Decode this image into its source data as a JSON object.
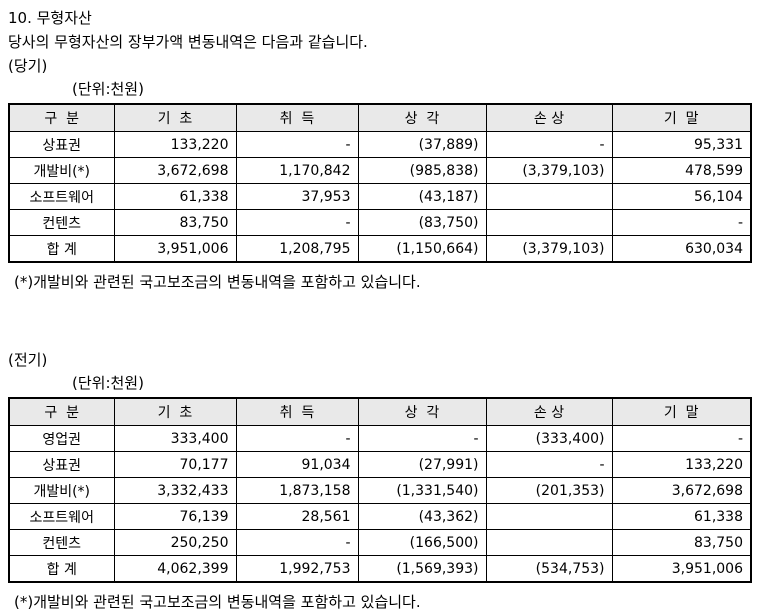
{
  "page": {
    "title": "10. 무형자산",
    "intro": "당사의 무형자산의 장부가액 변동내역은 다음과 같습니다.",
    "unit_label": "(단위:천원)",
    "footnote": "(*)개발비와 관련된 국고보조금의 변동내역을 포함하고 있습니다."
  },
  "colors": {
    "header_bg": "#e9e9e9",
    "border": "#000000",
    "text": "#000000"
  },
  "columns": [
    "구  분",
    "기  초",
    "취  득",
    "상  각",
    "손 상",
    "기  말"
  ],
  "current_period": {
    "label": "(당기)",
    "rows": [
      {
        "name": "상표권",
        "beginning": "133,220",
        "acquisition": "-",
        "amortization": "(37,889)",
        "impairment": "-",
        "ending": "95,331"
      },
      {
        "name": "개발비(*)",
        "beginning": "3,672,698",
        "acquisition": "1,170,842",
        "amortization": "(985,838)",
        "impairment": "(3,379,103)",
        "ending": "478,599"
      },
      {
        "name": "소프트웨어",
        "beginning": "61,338",
        "acquisition": "37,953",
        "amortization": "(43,187)",
        "impairment": "",
        "ending": "56,104"
      },
      {
        "name": "컨텐츠",
        "beginning": "83,750",
        "acquisition": "-",
        "amortization": "(83,750)",
        "impairment": "",
        "ending": "-"
      },
      {
        "name": "합 계",
        "beginning": "3,951,006",
        "acquisition": "1,208,795",
        "amortization": "(1,150,664)",
        "impairment": "(3,379,103)",
        "ending": "630,034"
      }
    ]
  },
  "prior_period": {
    "label": "(전기)",
    "rows": [
      {
        "name": "영업권",
        "beginning": "333,400",
        "acquisition": "-",
        "amortization": "-",
        "impairment": "(333,400)",
        "ending": "-"
      },
      {
        "name": "상표권",
        "beginning": "70,177",
        "acquisition": "91,034",
        "amortization": "(27,991)",
        "impairment": "-",
        "ending": "133,220"
      },
      {
        "name": "개발비(*)",
        "beginning": "3,332,433",
        "acquisition": "1,873,158",
        "amortization": "(1,331,540)",
        "impairment": "(201,353)",
        "ending": "3,672,698"
      },
      {
        "name": "소프트웨어",
        "beginning": "76,139",
        "acquisition": "28,561",
        "amortization": "(43,362)",
        "impairment": "",
        "ending": "61,338"
      },
      {
        "name": "컨텐츠",
        "beginning": "250,250",
        "acquisition": "-",
        "amortization": "(166,500)",
        "impairment": "",
        "ending": "83,750"
      },
      {
        "name": "합 계",
        "beginning": "4,062,399",
        "acquisition": "1,992,753",
        "amortization": "(1,569,393)",
        "impairment": "(534,753)",
        "ending": "3,951,006"
      }
    ]
  }
}
